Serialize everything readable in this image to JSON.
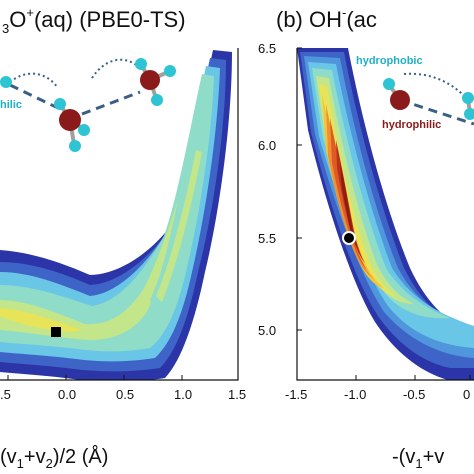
{
  "chart_data": [
    {
      "type": "contour",
      "title": "O",
      "title_prefix_sub": "3",
      "title_sup": "+",
      "title_tail": "(aq) (PBE0-TS)",
      "xlabel": "(v",
      "xlabel_sub1": "1",
      "xlabel_mid": "+v",
      "xlabel_sub2": "2",
      "xlabel_tail": ")/2 (Å)",
      "xlim": [
        -0.5,
        1.5
      ],
      "xticks": [
        "0.0",
        "0.5",
        "1.0",
        "1.5"
      ],
      "partial_tick": ".5",
      "marker": {
        "x": 0.0,
        "y": 5.0,
        "shape": "square"
      },
      "annotations": [
        "hilic"
      ],
      "colors": {
        "annotation": "#20b0c8"
      }
    },
    {
      "type": "contour",
      "title": "(b) OH",
      "title_sup": "-",
      "title_tail": "(ac",
      "xlabel": "-(v",
      "xlabel_sub1": "1",
      "xlabel_mid": "+v",
      "xlabel_tail": "",
      "xlim": [
        -1.5,
        0.0
      ],
      "ylim": [
        4.6,
        6.5
      ],
      "xticks": [
        "-1.5",
        "-1.0",
        "-0.5",
        "0"
      ],
      "yticks": [
        "6.5",
        "6.0",
        "5.5",
        "5.0"
      ],
      "marker": {
        "x": -0.85,
        "y": 5.5,
        "shape": "circle"
      },
      "annotations": [
        "hydrophobic",
        "hydrophilic"
      ],
      "colors": {
        "hydrophobic": "#20b0c8",
        "hydrophilic": "#8b1a1a"
      }
    }
  ],
  "colormap": [
    "#2b35a8",
    "#3e64c8",
    "#4f96dc",
    "#6ac6e6",
    "#8fdcc8",
    "#c3e68a",
    "#e8e45a",
    "#f4c43c",
    "#ef9130",
    "#df5a24",
    "#b8321a",
    "#8f1d12"
  ]
}
